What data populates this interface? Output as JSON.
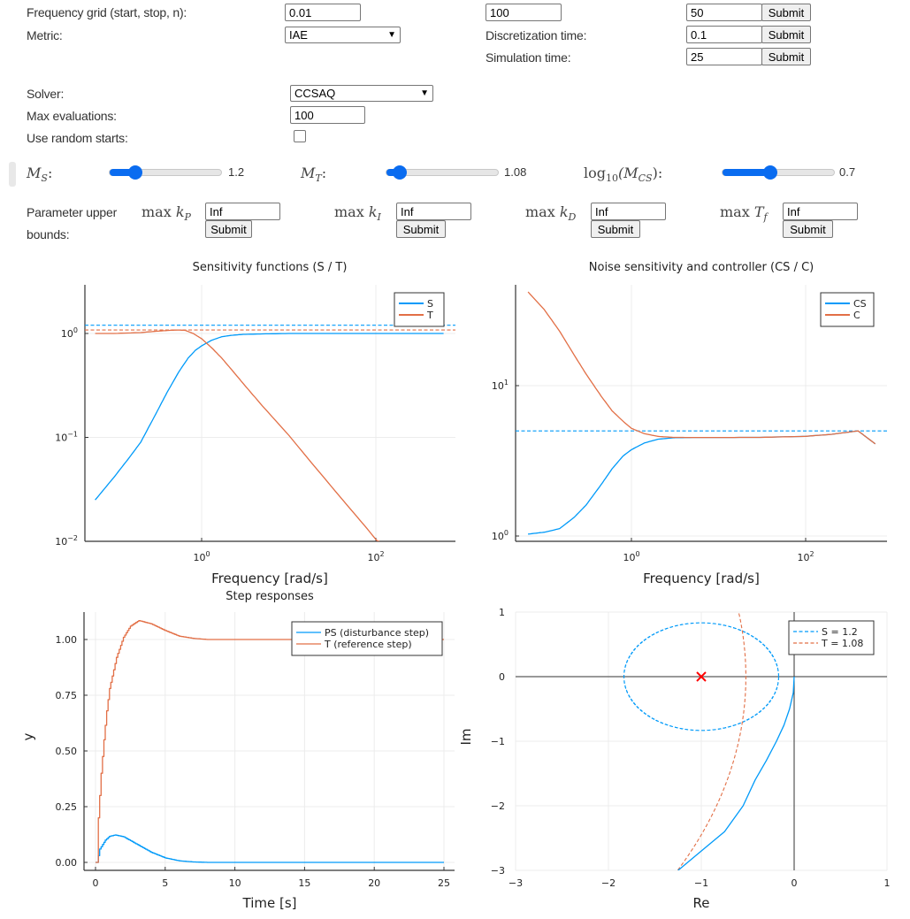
{
  "form": {
    "freq_grid_label": "Frequency grid (start, stop, n):",
    "freq_start": "0.01",
    "freq_stop": "100",
    "freq_n": "50",
    "metric_label": "Metric:",
    "metric_value": "IAE",
    "disc_label": "Discretization time:",
    "disc_value": "0.1",
    "sim_label": "Simulation time:",
    "sim_value": "25",
    "submit": "Submit",
    "solver_label": "Solver:",
    "solver_value": "CCSAQ",
    "max_eval_label": "Max evaluations:",
    "max_eval_value": "100",
    "random_label": "Use random starts:",
    "random_checked": false
  },
  "sliders": [
    {
      "pre": "",
      "main": "M",
      "sub": "S",
      "post": ":",
      "value": "1.2",
      "fill_fraction": 0.23
    },
    {
      "pre": "",
      "main": "M",
      "sub": "T",
      "post": ":",
      "value": "1.08",
      "fill_fraction": 0.12
    },
    {
      "pre": "log",
      "pre_sub": "10",
      "main": "(M",
      "sub": "CS",
      "post": "):",
      "value": "0.7",
      "fill_fraction": 0.43
    }
  ],
  "bounds": {
    "label_line1": "Parameter upper",
    "label_line2": "bounds:",
    "max": "max",
    "submit": "Submit",
    "items": [
      {
        "sym": "k",
        "sub": "P",
        "value": "Inf"
      },
      {
        "sym": "k",
        "sub": "I",
        "value": "Inf"
      },
      {
        "sym": "k",
        "sub": "D",
        "value": "Inf"
      },
      {
        "sym": "T",
        "sub": "f",
        "value": "Inf"
      }
    ]
  },
  "colors": {
    "blue": "#009af9",
    "orange": "#e26f46",
    "marker": "#ff0000",
    "slider": "#0a6cf0"
  },
  "chart_data": [
    {
      "type": "line",
      "title": "Sensitivity functions (S / T)",
      "xlabel": "Frequency [rad/s]",
      "ylabel": "",
      "xscale": "log",
      "yscale": "log",
      "xlim": [
        0.046,
        815
      ],
      "ylim": [
        0.01,
        2.94
      ],
      "xticks": [
        "10^0",
        "10^2"
      ],
      "xtick_values": [
        1,
        100
      ],
      "yticks": [
        "10^0",
        "10^-1",
        "10^-2"
      ],
      "ytick_values": [
        1,
        0.1,
        0.01
      ],
      "grid": true,
      "legend": "top-right",
      "series": [
        {
          "name": "S",
          "color": "#009af9",
          "x": [
            0.06,
            0.1,
            0.15,
            0.2,
            0.3,
            0.4,
            0.55,
            0.7,
            0.85,
            1,
            1.3,
            1.7,
            2.2,
            3,
            5,
            10,
            30,
            100,
            600
          ],
          "y": [
            0.025,
            0.042,
            0.065,
            0.09,
            0.17,
            0.27,
            0.43,
            0.58,
            0.69,
            0.76,
            0.86,
            0.93,
            0.96,
            0.98,
            0.99,
            1,
            1,
            1,
            1
          ]
        },
        {
          "name": "T",
          "color": "#e26f46",
          "x": [
            0.06,
            0.1,
            0.2,
            0.3,
            0.45,
            0.55,
            0.65,
            0.8,
            1,
            1.3,
            1.7,
            2.2,
            3,
            5,
            10,
            20,
            40,
            70,
            110
          ],
          "y": [
            1.0,
            1.0,
            1.02,
            1.05,
            1.075,
            1.08,
            1.07,
            1.0,
            0.89,
            0.73,
            0.58,
            0.45,
            0.33,
            0.2,
            0.105,
            0.052,
            0.026,
            0.015,
            0.0095
          ]
        }
      ],
      "hlines": [
        {
          "y": 1.2,
          "color": "#009af9",
          "style": "dashed"
        },
        {
          "y": 1.08,
          "color": "#e26f46",
          "style": "dashed"
        }
      ]
    },
    {
      "type": "line",
      "title": "Noise sensitivity and controller (CS / C)",
      "xlabel": "Frequency [rad/s]",
      "ylabel": "",
      "xscale": "log",
      "yscale": "log",
      "xlim": [
        0.046,
        815
      ],
      "ylim": [
        0.92,
        46.8
      ],
      "xticks": [
        "10^0",
        "10^2"
      ],
      "xtick_values": [
        1,
        100
      ],
      "yticks": [
        "10^1",
        "10^0"
      ],
      "ytick_values": [
        10,
        1
      ],
      "grid": true,
      "legend": "top-right",
      "series": [
        {
          "name": "CS",
          "color": "#009af9",
          "x": [
            0.065,
            0.1,
            0.15,
            0.22,
            0.3,
            0.45,
            0.6,
            0.8,
            1,
            1.4,
            2,
            3,
            5,
            10,
            30,
            100,
            200,
            400,
            630
          ],
          "y": [
            1.03,
            1.06,
            1.12,
            1.33,
            1.6,
            2.2,
            2.8,
            3.4,
            3.75,
            4.15,
            4.4,
            4.5,
            4.52,
            4.52,
            4.53,
            4.6,
            4.75,
            5.0,
            4.1
          ]
        },
        {
          "name": "C",
          "color": "#e26f46",
          "x": [
            0.065,
            0.1,
            0.15,
            0.22,
            0.3,
            0.45,
            0.6,
            0.8,
            1,
            1.4,
            2,
            3,
            5,
            10,
            30,
            100,
            200,
            400,
            630
          ],
          "y": [
            42,
            32,
            23,
            16,
            12,
            8.5,
            6.8,
            5.8,
            5.2,
            4.8,
            4.6,
            4.53,
            4.52,
            4.52,
            4.53,
            4.6,
            4.75,
            5.0,
            4.1
          ]
        }
      ],
      "hlines": [
        {
          "y": 5.0,
          "color": "#009af9",
          "style": "dashed"
        }
      ]
    },
    {
      "type": "line",
      "title": "Step responses",
      "xlabel": "Time [s]",
      "ylabel": "y",
      "xlim": [
        -0.8,
        25.8
      ],
      "ylim": [
        -0.04,
        1.12
      ],
      "xticks": [
        "0",
        "5",
        "10",
        "15",
        "20",
        "25"
      ],
      "xtick_values": [
        0,
        5,
        10,
        15,
        20,
        25
      ],
      "yticks": [
        "0.00",
        "0.25",
        "0.50",
        "0.75",
        "1.00"
      ],
      "ytick_values": [
        0,
        0.25,
        0.5,
        0.75,
        1
      ],
      "grid": true,
      "legend": "top-right",
      "step": 0.1,
      "series": [
        {
          "name": "PS (disturbance step)",
          "color": "#009af9",
          "x": [
            0,
            0.1,
            0.3,
            0.7,
            1.0,
            1.4,
            2,
            3,
            4,
            5,
            6,
            7,
            8,
            25
          ],
          "y": [
            0,
            0,
            0.06,
            0.1,
            0.117,
            0.123,
            0.115,
            0.08,
            0.045,
            0.02,
            0.007,
            0.002,
            0,
            0
          ]
        },
        {
          "name": "T  (reference step)",
          "color": "#e26f46",
          "x": [
            0,
            0.1,
            0.2,
            0.4,
            0.6,
            0.8,
            1,
            1.5,
            2,
            2.5,
            3.1,
            4,
            5,
            6,
            7,
            8,
            25
          ],
          "y": [
            0,
            0,
            0.2,
            0.4,
            0.55,
            0.68,
            0.78,
            0.92,
            1.01,
            1.06,
            1.085,
            1.07,
            1.04,
            1.015,
            1.005,
            1.0,
            1.0
          ]
        }
      ]
    },
    {
      "type": "line",
      "title": "",
      "xlabel": "Re",
      "ylabel": "Im",
      "xlim": [
        -3,
        1
      ],
      "ylim": [
        -3,
        1
      ],
      "xticks": [
        "−3",
        "−2",
        "−1",
        "0",
        "1"
      ],
      "xtick_values": [
        -3,
        -2,
        -1,
        0,
        1
      ],
      "yticks": [
        "1",
        "0",
        "−1",
        "−2",
        "−3"
      ],
      "ytick_values": [
        1,
        0,
        -1,
        -2,
        -3
      ],
      "grid": true,
      "legend": "top-right",
      "series": [
        {
          "name": "",
          "color": "#009af9",
          "style": "solid",
          "x": [
            0,
            -0.01,
            -0.05,
            -0.11,
            -0.19,
            -0.3,
            -0.42,
            -0.55,
            -0.75,
            -1.0,
            -1.25
          ],
          "y": [
            0,
            -0.25,
            -0.5,
            -0.75,
            -1,
            -1.3,
            -1.6,
            -2,
            -2.4,
            -2.7,
            -3
          ]
        }
      ],
      "circles": [
        {
          "name": "S = 1.2",
          "center": -1,
          "radius": 0.833,
          "color": "#009af9",
          "style": "dashed"
        },
        {
          "name": "T = 1.08",
          "center": -7.01,
          "radius": 6.49,
          "color": "#e26f46",
          "style": "dashed"
        }
      ],
      "marker": {
        "x": -1,
        "y": 0,
        "symbol": "x",
        "color": "#ff0000"
      }
    }
  ]
}
